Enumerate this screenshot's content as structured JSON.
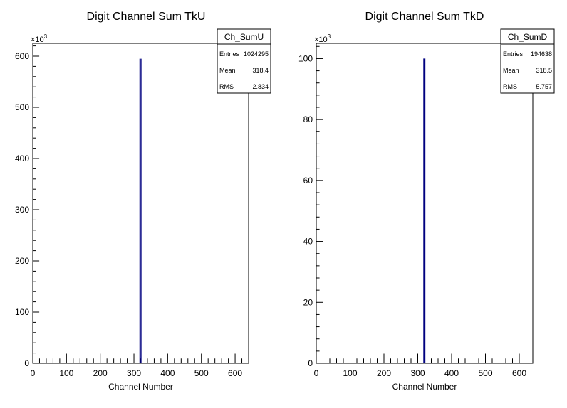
{
  "chart_data": [
    {
      "type": "bar",
      "title": "Digit Channel Sum TkU",
      "xlabel": "Channel Number",
      "ylabel": "",
      "y_multiplier": "×10",
      "y_exponent": "3",
      "xlim": [
        0,
        640
      ],
      "ylim": [
        0,
        625
      ],
      "x_ticks": [
        0,
        100,
        200,
        300,
        400,
        500,
        600
      ],
      "y_ticks": [
        0,
        100,
        200,
        300,
        400,
        500,
        600
      ],
      "series_color": "#000080",
      "peak": {
        "x": 318.4,
        "value": 595
      },
      "stats": {
        "name": "Ch_SumU",
        "rows": [
          {
            "label": "Entries",
            "value": "1024295"
          },
          {
            "label": "Mean",
            "value": "318.4"
          },
          {
            "label": "RMS",
            "value": "2.834"
          }
        ]
      }
    },
    {
      "type": "bar",
      "title": "Digit Channel Sum TkD",
      "xlabel": "Channel Number",
      "ylabel": "",
      "y_multiplier": "×10",
      "y_exponent": "3",
      "xlim": [
        0,
        640
      ],
      "ylim": [
        0,
        105
      ],
      "x_ticks": [
        0,
        100,
        200,
        300,
        400,
        500,
        600
      ],
      "y_ticks": [
        0,
        20,
        40,
        60,
        80,
        100
      ],
      "series_color": "#000080",
      "peak": {
        "x": 318.5,
        "value": 100
      },
      "stats": {
        "name": "Ch_SumD",
        "rows": [
          {
            "label": "Entries",
            "value": "194638"
          },
          {
            "label": "Mean",
            "value": "318.5"
          },
          {
            "label": "RMS",
            "value": "5.757"
          }
        ]
      }
    }
  ]
}
